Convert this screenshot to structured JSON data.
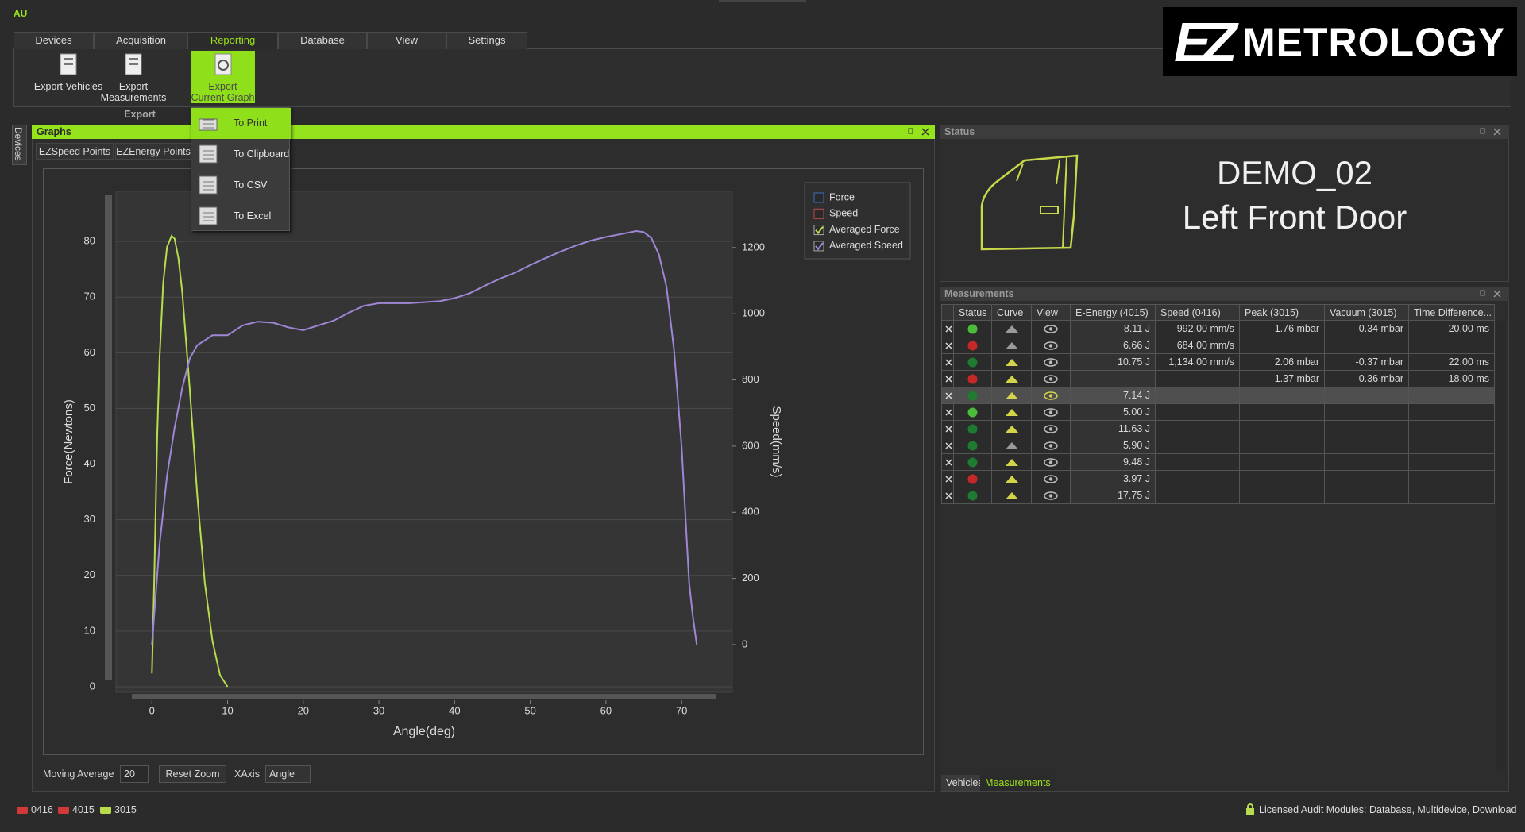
{
  "app_badge": "AU",
  "menu_tabs": [
    "Devices",
    "Acquisition",
    "Reporting",
    "Database",
    "View",
    "Settings"
  ],
  "active_tab": 2,
  "ribbon": {
    "buttons": [
      "Export Vehicles",
      "Export Measurements",
      "Export Current Graph"
    ],
    "active_button": 2,
    "group": "Export"
  },
  "export_menu": [
    "To Print",
    "To Clipboard",
    "To CSV",
    "To Excel"
  ],
  "logo": {
    "mark": "EZ",
    "text": "METROLOGY"
  },
  "side_tab": "Devices",
  "graphs": {
    "title": "Graphs",
    "tabs": [
      "EZSpeed Points",
      "EZEnergy Points"
    ],
    "moving_average_label": "Moving Average",
    "moving_average": 20,
    "reset_zoom": "Reset Zoom",
    "xaxis_label": "XAxis",
    "xaxis_value": "Angle"
  },
  "chart_data": {
    "type": "line",
    "xlabel": "Angle(deg)",
    "ylabel": "Force(Newtons)",
    "y2label": "Speed(mm/s)",
    "xlim": [
      -4.75,
      76.7
    ],
    "xticks": [
      0,
      10,
      20,
      30,
      40,
      50,
      60,
      70
    ],
    "ylim": [
      -1,
      89
    ],
    "yticks": [
      0,
      10,
      20,
      30,
      40,
      50,
      60,
      70,
      80
    ],
    "y2lim": [
      -144,
      1370
    ],
    "y2ticks": [
      0,
      200,
      400,
      600,
      800,
      1000,
      1200
    ],
    "grid": true,
    "legend_extra": [
      {
        "name": "Force",
        "color": "#3b73c4"
      },
      {
        "name": "Speed",
        "color": "#c44a4a"
      }
    ],
    "series": [
      {
        "name": "Averaged Force",
        "color": "#b8dc4c",
        "x": [
          0,
          0.3,
          0.7,
          1,
          1.5,
          2,
          2.6,
          3,
          3.5,
          4,
          5,
          6,
          7,
          8,
          9,
          10
        ],
        "values": [
          2.4,
          18.6,
          44.8,
          58.7,
          72.6,
          79,
          81,
          80.5,
          77,
          71,
          53.5,
          34.3,
          18.6,
          8.2,
          2.1,
          0
        ]
      },
      {
        "name": "Averaged Speed",
        "color": "#9f86d6",
        "axis": "y2",
        "x": [
          0,
          1,
          2,
          3,
          4,
          5,
          6,
          8,
          10,
          12,
          14,
          16,
          18,
          20,
          22,
          24,
          26,
          28,
          30,
          32,
          34,
          36,
          38,
          40,
          42,
          44,
          46,
          48,
          50,
          52,
          54,
          56,
          58,
          60,
          62,
          64,
          65,
          66,
          67,
          68,
          69,
          70,
          70.5,
          71,
          71.5,
          72
        ],
        "values": [
          0,
          300,
          510,
          655,
          775,
          865,
          905,
          935,
          935,
          965,
          976,
          973,
          959,
          950,
          965,
          979,
          1003,
          1024,
          1032,
          1032,
          1032,
          1035,
          1038,
          1047,
          1062,
          1085,
          1106,
          1124,
          1147,
          1168,
          1188,
          1206,
          1221,
          1232,
          1241,
          1250,
          1247,
          1229,
          1179,
          1082,
          891,
          597,
          391,
          185,
          82,
          0
        ]
      }
    ]
  },
  "status": {
    "title": "Status",
    "vehicle": "DEMO_02",
    "part": "Left Front Door"
  },
  "measurements": {
    "title": "Measurements",
    "columns": [
      "Status",
      "Curve",
      "View",
      "E-Energy (4015)",
      "Speed (0416)",
      "Peak (3015)",
      "Vacuum (3015)",
      "Time Difference..."
    ],
    "rows": [
      {
        "status": "#4cbb3c",
        "curve": "#9a9a9a",
        "cells": [
          "8.11 J",
          "992.00 mm/s",
          "1.76 mbar",
          "-0.34 mbar",
          "20.00 ms"
        ]
      },
      {
        "status": "#c62828",
        "curve": "#9a9a9a",
        "cells": [
          "6.66 J",
          "684.00 mm/s",
          null,
          null,
          null
        ]
      },
      {
        "status": "#1f7a32",
        "curve": "#d4d44a",
        "cells": [
          "10.75 J",
          "1,134.00 mm/s",
          "2.06 mbar",
          "-0.37 mbar",
          "22.00 ms"
        ]
      },
      {
        "status": "#c62828",
        "curve": "#d4d44a",
        "cells": [
          null,
          null,
          "1.37 mbar",
          "-0.36 mbar",
          "18.00 ms"
        ]
      },
      {
        "status": "#1f7a32",
        "curve": "#d4d44a",
        "selected": true,
        "cells": [
          "7.14 J",
          null,
          null,
          null,
          null
        ]
      },
      {
        "status": "#4cbb3c",
        "curve": "#d4d44a",
        "cells": [
          "5.00 J",
          null,
          null,
          null,
          null
        ]
      },
      {
        "status": "#1f7a32",
        "curve": "#d4d44a",
        "cells": [
          "11.63 J",
          null,
          null,
          null,
          null
        ]
      },
      {
        "status": "#1f7a32",
        "curve": "#9a9a9a",
        "cells": [
          "5.90 J",
          null,
          null,
          null,
          null
        ]
      },
      {
        "status": "#1f7a32",
        "curve": "#d4d44a",
        "cells": [
          "9.48 J",
          null,
          null,
          null,
          null
        ]
      },
      {
        "status": "#c62828",
        "curve": "#d4d44a",
        "cells": [
          "3.97 J",
          null,
          null,
          null,
          null
        ]
      },
      {
        "status": "#1f7a32",
        "curve": "#d4d44a",
        "cells": [
          "17.75 J",
          null,
          null,
          null,
          null
        ]
      }
    ]
  },
  "bottom_tabs": [
    "Vehicles",
    "Measurements"
  ],
  "active_bottom_tab": 1,
  "status_bar": {
    "devices": [
      {
        "label": "0416",
        "color": "#d23a3a"
      },
      {
        "label": "4015",
        "color": "#d23a3a"
      },
      {
        "label": "3015",
        "color": "#b8dc4c"
      }
    ],
    "license": "Licensed Audit Modules:  Database, Multidevice, Download"
  }
}
